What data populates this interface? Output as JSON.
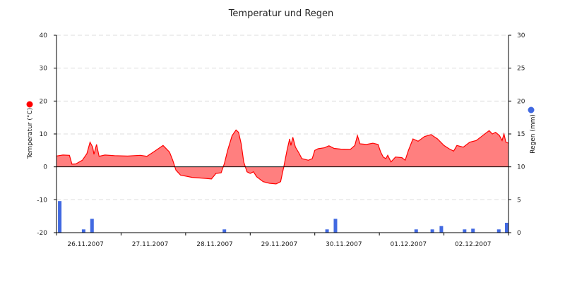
{
  "chart_data": {
    "type": "line",
    "title": "Temperatur und Regen",
    "x_range_days": [
      0,
      7
    ],
    "x_tick_labels": [
      "26.11.2007",
      "27.11.2007",
      "28.11.2007",
      "29.11.2007",
      "30.11.2007",
      "01.12.2007",
      "02.12.2007"
    ],
    "left_axis": {
      "label": "Temperatur (°C)",
      "ylim": [
        -20,
        40
      ],
      "ticks": [
        -20,
        -10,
        0,
        10,
        20,
        30,
        40
      ],
      "marker_color": "#ff0000"
    },
    "right_axis": {
      "label": "Regen (mm)",
      "ylim": [
        0,
        30
      ],
      "ticks": [
        0,
        5,
        10,
        15,
        20,
        25,
        30
      ],
      "marker_color": "#4169e1"
    },
    "grid": true,
    "series": [
      {
        "axis": "left",
        "style": "area",
        "color": "#ff0000",
        "fill": "#ff7f7f",
        "points": [
          [
            0.0,
            3.3
          ],
          [
            0.1,
            3.6
          ],
          [
            0.2,
            3.5
          ],
          [
            0.24,
            0.8
          ],
          [
            0.3,
            0.9
          ],
          [
            0.4,
            2.0
          ],
          [
            0.47,
            4.0
          ],
          [
            0.52,
            7.5
          ],
          [
            0.56,
            6.0
          ],
          [
            0.58,
            3.8
          ],
          [
            0.62,
            6.8
          ],
          [
            0.66,
            3.2
          ],
          [
            0.75,
            3.6
          ],
          [
            0.9,
            3.4
          ],
          [
            1.1,
            3.3
          ],
          [
            1.3,
            3.5
          ],
          [
            1.4,
            3.2
          ],
          [
            1.5,
            4.5
          ],
          [
            1.65,
            6.5
          ],
          [
            1.75,
            4.5
          ],
          [
            1.8,
            2.0
          ],
          [
            1.85,
            -1.0
          ],
          [
            1.92,
            -2.5
          ],
          [
            2.1,
            -3.2
          ],
          [
            2.3,
            -3.5
          ],
          [
            2.4,
            -3.7
          ],
          [
            2.47,
            -2.0
          ],
          [
            2.55,
            -1.8
          ],
          [
            2.6,
            1.0
          ],
          [
            2.65,
            5.0
          ],
          [
            2.72,
            9.5
          ],
          [
            2.78,
            11.2
          ],
          [
            2.82,
            10.5
          ],
          [
            2.86,
            7.0
          ],
          [
            2.9,
            1.5
          ],
          [
            2.95,
            -1.5
          ],
          [
            3.0,
            -2.0
          ],
          [
            3.05,
            -1.5
          ],
          [
            3.1,
            -3.0
          ],
          [
            3.2,
            -4.5
          ],
          [
            3.3,
            -5.0
          ],
          [
            3.4,
            -5.2
          ],
          [
            3.47,
            -4.5
          ],
          [
            3.52,
            0.0
          ],
          [
            3.57,
            5.0
          ],
          [
            3.61,
            8.5
          ],
          [
            3.63,
            6.5
          ],
          [
            3.66,
            9.0
          ],
          [
            3.7,
            6.0
          ],
          [
            3.76,
            4.0
          ],
          [
            3.8,
            2.5
          ],
          [
            3.9,
            2.0
          ],
          [
            3.96,
            2.5
          ],
          [
            4.0,
            5.0
          ],
          [
            4.05,
            5.5
          ],
          [
            4.15,
            5.8
          ],
          [
            4.22,
            6.4
          ],
          [
            4.3,
            5.6
          ],
          [
            4.4,
            5.4
          ],
          [
            4.55,
            5.3
          ],
          [
            4.62,
            6.5
          ],
          [
            4.66,
            9.5
          ],
          [
            4.7,
            7.0
          ],
          [
            4.8,
            6.8
          ],
          [
            4.9,
            7.2
          ],
          [
            4.98,
            6.8
          ],
          [
            5.02,
            4.5
          ],
          [
            5.06,
            3.0
          ],
          [
            5.1,
            2.5
          ],
          [
            5.13,
            3.5
          ],
          [
            5.18,
            1.5
          ],
          [
            5.25,
            3.0
          ],
          [
            5.35,
            2.8
          ],
          [
            5.4,
            2.0
          ],
          [
            5.45,
            5.0
          ],
          [
            5.52,
            8.5
          ],
          [
            5.6,
            7.8
          ],
          [
            5.7,
            9.2
          ],
          [
            5.8,
            9.8
          ],
          [
            5.9,
            8.5
          ],
          [
            6.0,
            6.5
          ],
          [
            6.08,
            5.5
          ],
          [
            6.15,
            4.8
          ],
          [
            6.2,
            6.5
          ],
          [
            6.3,
            6.0
          ],
          [
            6.4,
            7.5
          ],
          [
            6.5,
            8.0
          ],
          [
            6.6,
            9.5
          ],
          [
            6.7,
            11.0
          ],
          [
            6.75,
            10.0
          ],
          [
            6.8,
            10.5
          ],
          [
            6.86,
            9.5
          ],
          [
            6.9,
            8.0
          ],
          [
            6.93,
            10.0
          ],
          [
            6.96,
            7.5
          ],
          [
            7.0,
            7.2
          ]
        ]
      },
      {
        "axis": "right",
        "style": "bar",
        "color": "#4169e1",
        "points": [
          [
            0.05,
            4.8
          ],
          [
            0.42,
            0.5
          ],
          [
            0.55,
            2.1
          ],
          [
            2.6,
            0.5
          ],
          [
            4.19,
            0.5
          ],
          [
            4.32,
            2.1
          ],
          [
            5.57,
            0.5
          ],
          [
            5.82,
            0.5
          ],
          [
            5.96,
            1.0
          ],
          [
            6.32,
            0.5
          ],
          [
            6.45,
            0.6
          ],
          [
            6.85,
            0.5
          ],
          [
            7.0,
            1.5
          ]
        ]
      }
    ]
  }
}
